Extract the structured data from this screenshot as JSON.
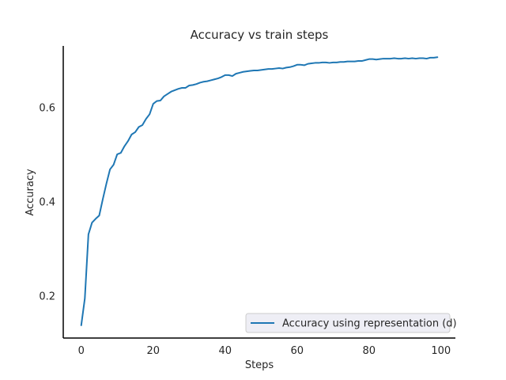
{
  "chart_data": {
    "type": "line",
    "title": "Accuracy vs train steps",
    "xlabel": "Steps",
    "ylabel": "Accuracy",
    "xlim": [
      -5,
      104
    ],
    "ylim": [
      0.11,
      0.73
    ],
    "xticks": [
      0,
      20,
      40,
      60,
      80,
      100
    ],
    "xtick_labels": [
      "0",
      "20",
      "40",
      "60",
      "80",
      "100"
    ],
    "yticks": [
      0.2,
      0.4,
      0.6
    ],
    "ytick_labels": [
      "0.2",
      "0.4",
      "0.6"
    ],
    "grid": false,
    "legend_position": "bottom-right",
    "series": [
      {
        "name": "Accuracy using representation (d)",
        "color": "#1f77b4",
        "x": [
          0,
          1,
          2,
          3,
          4,
          5,
          6,
          7,
          8,
          9,
          10,
          11,
          12,
          13,
          14,
          15,
          16,
          17,
          18,
          19,
          20,
          21,
          22,
          23,
          24,
          25,
          26,
          27,
          28,
          29,
          30,
          31,
          32,
          33,
          34,
          35,
          36,
          37,
          38,
          39,
          40,
          41,
          42,
          43,
          44,
          45,
          46,
          47,
          48,
          49,
          50,
          51,
          52,
          53,
          54,
          55,
          56,
          57,
          58,
          59,
          60,
          61,
          62,
          63,
          64,
          65,
          66,
          67,
          68,
          69,
          70,
          71,
          72,
          73,
          74,
          75,
          76,
          77,
          78,
          79,
          80,
          81,
          82,
          83,
          84,
          85,
          86,
          87,
          88,
          89,
          90,
          91,
          92,
          93,
          94,
          95,
          96,
          97,
          98,
          99
        ],
        "y": [
          0.137,
          0.194,
          0.33,
          0.355,
          0.363,
          0.37,
          0.405,
          0.438,
          0.468,
          0.478,
          0.5,
          0.503,
          0.517,
          0.528,
          0.542,
          0.547,
          0.558,
          0.562,
          0.575,
          0.585,
          0.607,
          0.613,
          0.614,
          0.623,
          0.628,
          0.633,
          0.636,
          0.639,
          0.641,
          0.641,
          0.646,
          0.647,
          0.649,
          0.652,
          0.654,
          0.655,
          0.657,
          0.659,
          0.661,
          0.664,
          0.668,
          0.668,
          0.666,
          0.671,
          0.673,
          0.675,
          0.676,
          0.677,
          0.678,
          0.678,
          0.679,
          0.68,
          0.681,
          0.681,
          0.682,
          0.683,
          0.682,
          0.684,
          0.685,
          0.687,
          0.69,
          0.69,
          0.689,
          0.692,
          0.693,
          0.694,
          0.694,
          0.695,
          0.695,
          0.694,
          0.695,
          0.695,
          0.696,
          0.696,
          0.697,
          0.697,
          0.697,
          0.698,
          0.698,
          0.7,
          0.702,
          0.702,
          0.701,
          0.702,
          0.703,
          0.703,
          0.703,
          0.704,
          0.703,
          0.703,
          0.704,
          0.703,
          0.704,
          0.703,
          0.704,
          0.704,
          0.703,
          0.705,
          0.705,
          0.706
        ]
      }
    ]
  }
}
